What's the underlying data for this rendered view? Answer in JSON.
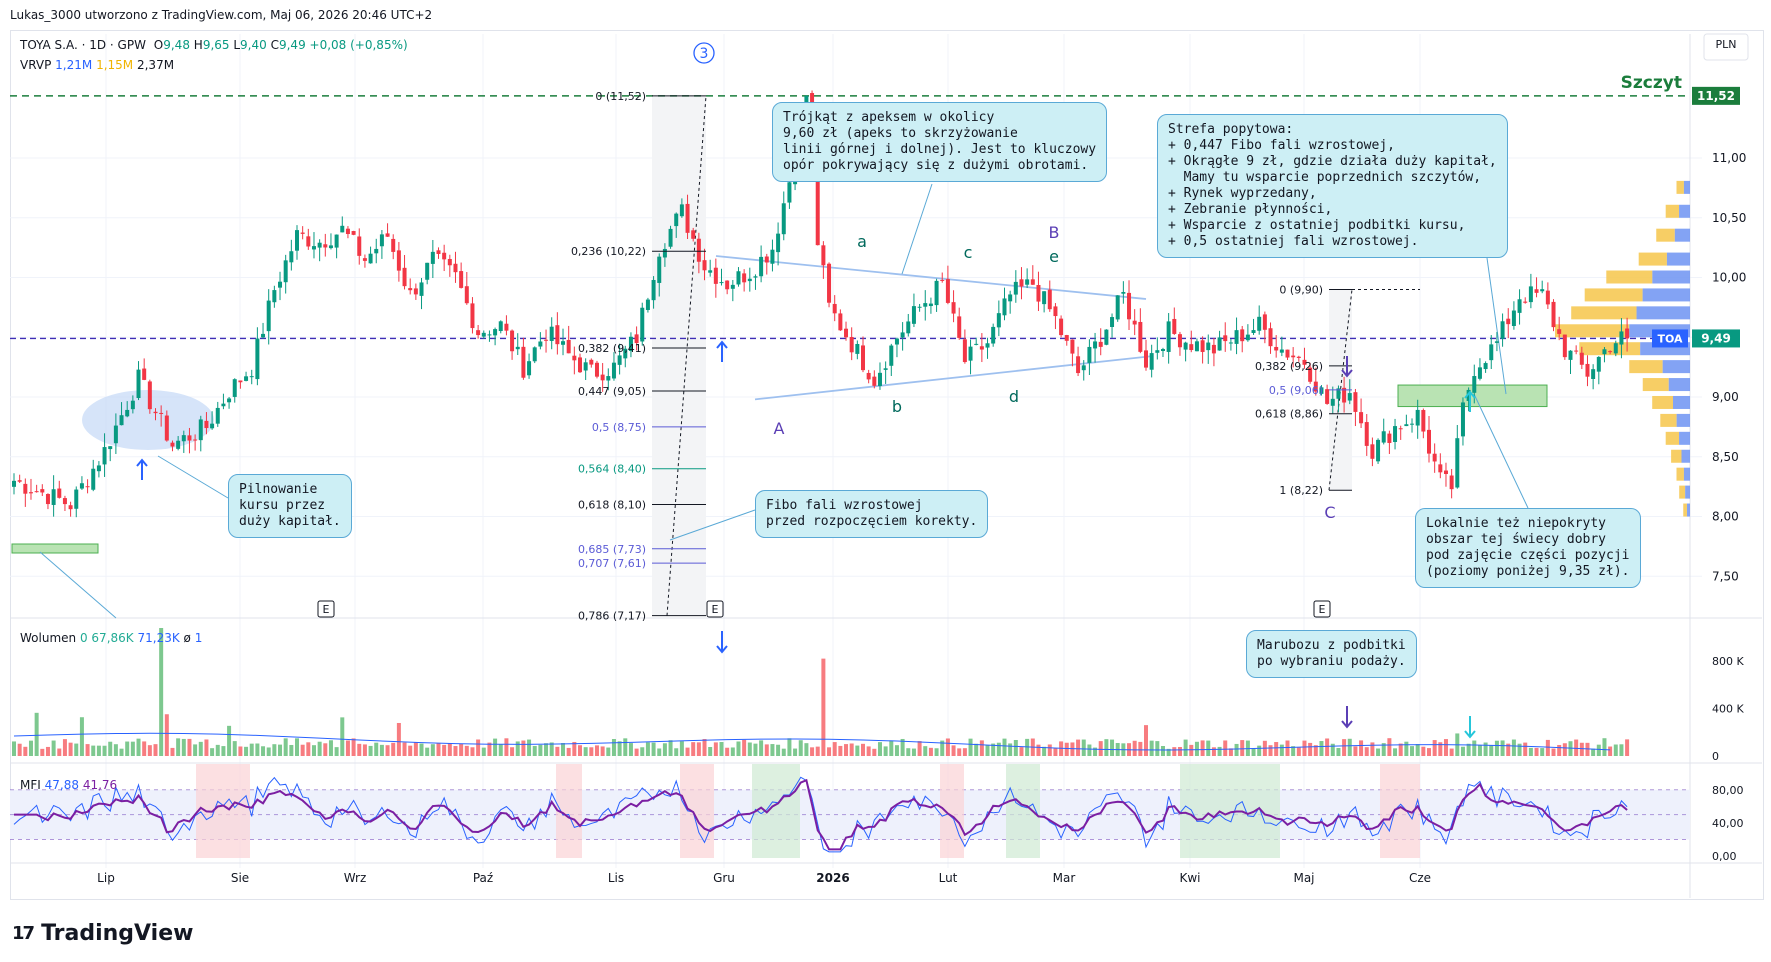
{
  "header": {
    "text": "Lukas_3000 utworzono z TradingView.com, Maj 06, 2026 20:46 UTC+2"
  },
  "legend": {
    "symbol": "TOYA S.A. · 1D · GPW",
    "o_label": "O",
    "o": "9,48",
    "h_label": "H",
    "h": "9,65",
    "l_label": "L",
    "l": "9,40",
    "c_label": "C",
    "c": "9,49",
    "change": "+0,08 (+0,85%)",
    "vrvp_label": "VRVP",
    "vrvp_a": "1,21M",
    "vrvp_b": "1,15M",
    "vrvp_c": "2,37M"
  },
  "currency": "PLN",
  "volume_legend": {
    "label": "Wolumen",
    "v0": "0",
    "v1": "67,86K",
    "v2": "71,23K",
    "v3": "ø",
    "v4": "1"
  },
  "mfi_legend": {
    "label": "MFI",
    "v1": "47,88",
    "v2": "41,76"
  },
  "brand": "TradingView",
  "brand_mark": "17",
  "price_labels": {
    "peak": "Szczyt",
    "peak_tag": "11,52",
    "last_tag": "9,49",
    "ticker_tag": "TOA"
  },
  "notes": {
    "triangle": "Trójkąt z apeksem w okolicy\n9,60 zł (apeks to skrzyżowanie\nlinii górnej i dolnej). Jest to kluczowy\nopór pokrywający się z dużymi obrotami.",
    "demand": "Strefa popytowa:\n+ 0,447 Fibo fali wzrostowej,\n+ Okrągłe 9 zł, gdzie działa duży kapitał,\n  Mamy tu wsparcie poprzednich szczytów,\n+ Rynek wyprzedany,\n+ Zebranie płynności,\n+ Wsparcie z ostatniej podbitki kursu,\n+ 0,5 ostatniej fali wzrostowej.",
    "guard": "Pilnowanie\nkursu przez\nduży kapitał.",
    "fibo": "Fibo fali wzrostowej\nprzed rozpoczęciem korekty.",
    "local": "Lokalnie też niepokryty\nobszar tej świecy dobry\npod zajęcie części pozycji\n(poziomy poniżej 9,35 zł).",
    "marubozu": "Marubozu z podbitki\npo wybraniu podaży."
  },
  "wave_labels": {
    "circle": "3",
    "a": "a",
    "b": "b",
    "c": "c",
    "d": "d",
    "e": "e",
    "A": "A",
    "B": "B",
    "C": "C",
    "E": "E"
  },
  "fib1": [
    {
      "label": "0 (11,52)",
      "price": 11.52
    },
    {
      "label": "0,236 (10,22)",
      "price": 10.22
    },
    {
      "label": "0,382 (9,41)",
      "price": 9.41
    },
    {
      "label": "0,447 (9,05)",
      "price": 9.05
    },
    {
      "label": "0,5 (8,75)",
      "price": 8.75
    },
    {
      "label": "0,564 (8,40)",
      "price": 8.4
    },
    {
      "label": "0,618 (8,10)",
      "price": 8.1
    },
    {
      "label": "0,685 (7,73)",
      "price": 7.73
    },
    {
      "label": "0,707 (7,61)",
      "price": 7.61
    },
    {
      "label": "0,786 (7,17)",
      "price": 7.17
    }
  ],
  "fib2": [
    {
      "label": "0 (9,90)",
      "price": 9.9
    },
    {
      "label": "0,382 (9,26)",
      "price": 9.26
    },
    {
      "label": "0,5 (9,06)",
      "price": 9.06
    },
    {
      "label": "0,618 (8,86)",
      "price": 8.86
    },
    {
      "label": "1 (8,22)",
      "price": 8.22
    }
  ],
  "colors": {
    "up": "#089981",
    "down": "#f23645",
    "vol_up": "#7dc88f",
    "vol_down": "#f77c80",
    "mfi": "#7b1fa2",
    "mfi2": "#2962ff",
    "fib_gray": "#131722",
    "fib_blue": "#5b5bd6",
    "fib_teal": "#089981",
    "line_blue": "#9ec0ef"
  },
  "chart_data": {
    "type": "candlestick",
    "y_ticks": [
      "11,00",
      "10,50",
      "10,00",
      "9,50",
      "9,00",
      "8,50",
      "8,00",
      "7,50"
    ],
    "y_tick_values": [
      11.0,
      10.5,
      10.0,
      9.5,
      9.0,
      8.5,
      8.0,
      7.5
    ],
    "ylim": [
      7.2,
      11.8
    ],
    "x_labels": [
      "Lip",
      "Sie",
      "Wrz",
      "Paź",
      "Lis",
      "Gru",
      "2026",
      "Lut",
      "Mar",
      "Kwi",
      "Maj",
      "Cze"
    ],
    "volume_ticks": [
      "800 K",
      "400 K",
      "0"
    ],
    "volume_tick_values": [
      800000,
      400000,
      0
    ],
    "mfi_ticks": [
      "80,00",
      "40,00",
      "0,00"
    ],
    "mfi_tick_values": [
      80,
      40,
      0
    ],
    "mfi_bands": [
      80,
      20
    ],
    "anchor_closes": [
      [
        0,
        8.3
      ],
      [
        10,
        8.1
      ],
      [
        16,
        8.55
      ],
      [
        22,
        9.15
      ],
      [
        28,
        8.6
      ],
      [
        34,
        8.75
      ],
      [
        38,
        9.05
      ],
      [
        42,
        9.25
      ],
      [
        46,
        9.9
      ],
      [
        50,
        10.35
      ],
      [
        54,
        10.3
      ],
      [
        58,
        10.4
      ],
      [
        62,
        10.15
      ],
      [
        66,
        10.35
      ],
      [
        70,
        9.85
      ],
      [
        74,
        10.15
      ],
      [
        78,
        10.0
      ],
      [
        82,
        9.55
      ],
      [
        86,
        9.6
      ],
      [
        90,
        9.25
      ],
      [
        94,
        9.55
      ],
      [
        98,
        9.35
      ],
      [
        102,
        9.2
      ],
      [
        106,
        9.25
      ],
      [
        110,
        9.5
      ],
      [
        114,
        10.25
      ],
      [
        118,
        10.55
      ],
      [
        122,
        10.1
      ],
      [
        126,
        9.95
      ],
      [
        130,
        10.05
      ],
      [
        134,
        10.25
      ],
      [
        138,
        11.0
      ],
      [
        140,
        11.52
      ],
      [
        142,
        10.3
      ],
      [
        144,
        9.75
      ],
      [
        148,
        9.45
      ],
      [
        152,
        9.15
      ],
      [
        156,
        9.5
      ],
      [
        160,
        9.75
      ],
      [
        164,
        9.95
      ],
      [
        168,
        9.3
      ],
      [
        172,
        9.45
      ],
      [
        176,
        9.85
      ],
      [
        180,
        9.95
      ],
      [
        184,
        9.65
      ],
      [
        188,
        9.2
      ],
      [
        192,
        9.5
      ],
      [
        196,
        9.85
      ],
      [
        200,
        9.3
      ],
      [
        204,
        9.55
      ],
      [
        208,
        9.45
      ],
      [
        212,
        9.4
      ],
      [
        216,
        9.5
      ],
      [
        220,
        9.6
      ],
      [
        224,
        9.4
      ],
      [
        228,
        9.3
      ],
      [
        232,
        8.95
      ],
      [
        236,
        9.05
      ],
      [
        240,
        8.55
      ],
      [
        244,
        8.75
      ],
      [
        248,
        8.85
      ],
      [
        252,
        8.3
      ],
      [
        254,
        8.25
      ],
      [
        256,
        8.9
      ],
      [
        258,
        9.25
      ],
      [
        262,
        9.45
      ],
      [
        266,
        9.85
      ],
      [
        270,
        9.85
      ],
      [
        274,
        9.4
      ],
      [
        278,
        9.2
      ],
      [
        282,
        9.45
      ],
      [
        284,
        9.49
      ]
    ],
    "volume_spikes": [
      [
        26,
        1400000
      ],
      [
        143,
        820000
      ],
      [
        200,
        260000
      ],
      [
        243,
        150000
      ],
      [
        255,
        190000
      ]
    ],
    "last_price": 9.49,
    "peak": 11.52
  }
}
